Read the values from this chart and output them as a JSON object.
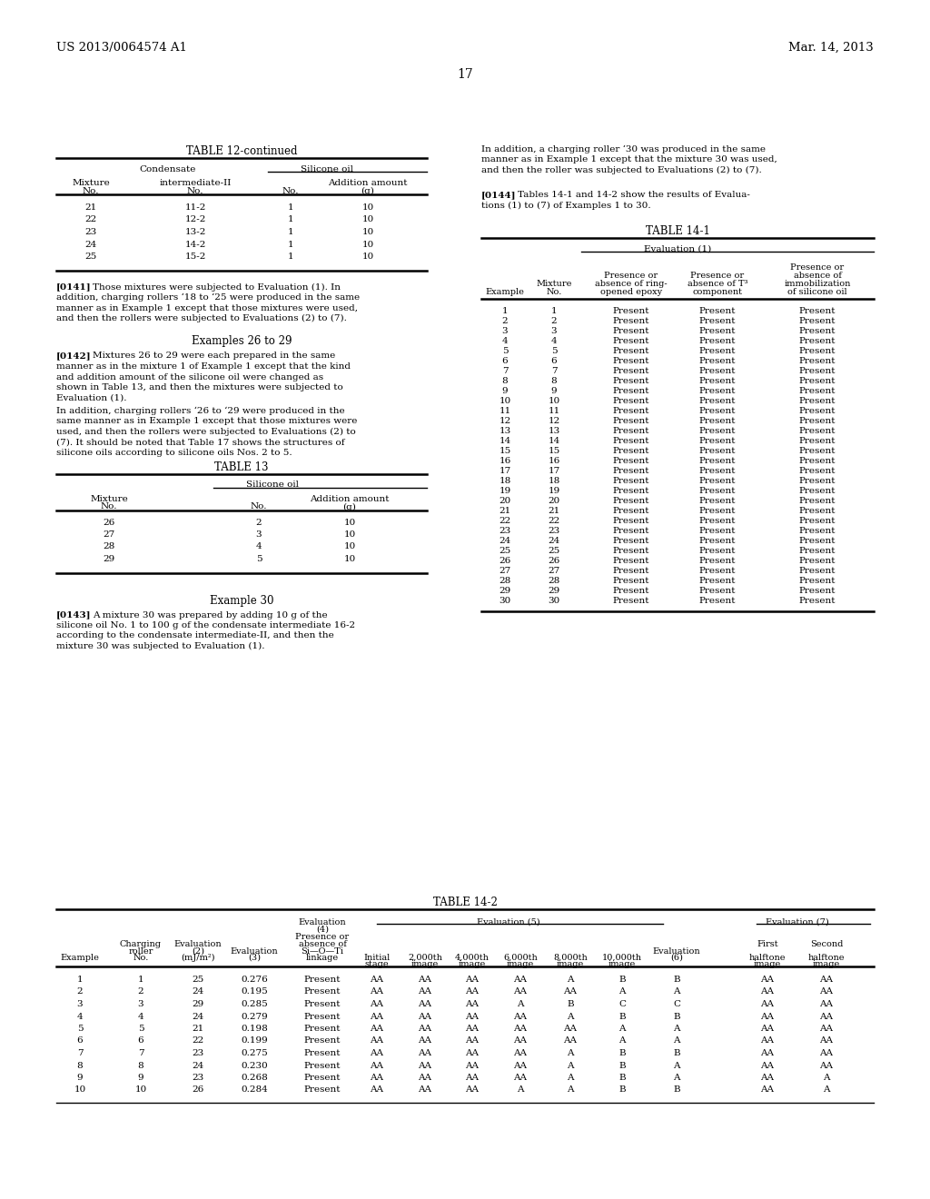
{
  "page_header_left": "US 2013/0064574 A1",
  "page_header_right": "Mar. 14, 2013",
  "page_number": "17",
  "background_color": "#ffffff",
  "text_color": "#000000",
  "table12_title": "TABLE 12-continued",
  "table12_data": [
    [
      "21",
      "11-2",
      "1",
      "10"
    ],
    [
      "22",
      "12-2",
      "1",
      "10"
    ],
    [
      "23",
      "13-2",
      "1",
      "10"
    ],
    [
      "24",
      "14-2",
      "1",
      "10"
    ],
    [
      "25",
      "15-2",
      "1",
      "10"
    ]
  ],
  "examples2629_heading": "Examples 26 to 29",
  "example30_heading": "Example 30",
  "table13_title": "TABLE 13",
  "table13_data": [
    [
      "26",
      "2",
      "10"
    ],
    [
      "27",
      "3",
      "10"
    ],
    [
      "28",
      "4",
      "10"
    ],
    [
      "29",
      "5",
      "10"
    ]
  ],
  "table141_title": "TABLE 14-1",
  "table141_group_header": "Evaluation (1)",
  "table141_data": [
    [
      "1",
      "1",
      "Present",
      "Present",
      "Present"
    ],
    [
      "2",
      "2",
      "Present",
      "Present",
      "Present"
    ],
    [
      "3",
      "3",
      "Present",
      "Present",
      "Present"
    ],
    [
      "4",
      "4",
      "Present",
      "Present",
      "Present"
    ],
    [
      "5",
      "5",
      "Present",
      "Present",
      "Present"
    ],
    [
      "6",
      "6",
      "Present",
      "Present",
      "Present"
    ],
    [
      "7",
      "7",
      "Present",
      "Present",
      "Present"
    ],
    [
      "8",
      "8",
      "Present",
      "Present",
      "Present"
    ],
    [
      "9",
      "9",
      "Present",
      "Present",
      "Present"
    ],
    [
      "10",
      "10",
      "Present",
      "Present",
      "Present"
    ],
    [
      "11",
      "11",
      "Present",
      "Present",
      "Present"
    ],
    [
      "12",
      "12",
      "Present",
      "Present",
      "Present"
    ],
    [
      "13",
      "13",
      "Present",
      "Present",
      "Present"
    ],
    [
      "14",
      "14",
      "Present",
      "Present",
      "Present"
    ],
    [
      "15",
      "15",
      "Present",
      "Present",
      "Present"
    ],
    [
      "16",
      "16",
      "Present",
      "Present",
      "Present"
    ],
    [
      "17",
      "17",
      "Present",
      "Present",
      "Present"
    ],
    [
      "18",
      "18",
      "Present",
      "Present",
      "Present"
    ],
    [
      "19",
      "19",
      "Present",
      "Present",
      "Present"
    ],
    [
      "20",
      "20",
      "Present",
      "Present",
      "Present"
    ],
    [
      "21",
      "21",
      "Present",
      "Present",
      "Present"
    ],
    [
      "22",
      "22",
      "Present",
      "Present",
      "Present"
    ],
    [
      "23",
      "23",
      "Present",
      "Present",
      "Present"
    ],
    [
      "24",
      "24",
      "Present",
      "Present",
      "Present"
    ],
    [
      "25",
      "25",
      "Present",
      "Present",
      "Present"
    ],
    [
      "26",
      "26",
      "Present",
      "Present",
      "Present"
    ],
    [
      "27",
      "27",
      "Present",
      "Present",
      "Present"
    ],
    [
      "28",
      "28",
      "Present",
      "Present",
      "Present"
    ],
    [
      "29",
      "29",
      "Present",
      "Present",
      "Present"
    ],
    [
      "30",
      "30",
      "Present",
      "Present",
      "Present"
    ]
  ],
  "table142_title": "TABLE 14-2",
  "table142_data": [
    [
      "1",
      "1",
      "25",
      "0.276",
      "Present",
      "AA",
      "AA",
      "AA",
      "AA",
      "A",
      "B",
      "B",
      "AA",
      "AA"
    ],
    [
      "2",
      "2",
      "24",
      "0.195",
      "Present",
      "AA",
      "AA",
      "AA",
      "AA",
      "AA",
      "A",
      "A",
      "AA",
      "AA"
    ],
    [
      "3",
      "3",
      "29",
      "0.285",
      "Present",
      "AA",
      "AA",
      "AA",
      "A",
      "B",
      "C",
      "C",
      "AA",
      "AA"
    ],
    [
      "4",
      "4",
      "24",
      "0.279",
      "Present",
      "AA",
      "AA",
      "AA",
      "AA",
      "A",
      "B",
      "B",
      "AA",
      "AA"
    ],
    [
      "5",
      "5",
      "21",
      "0.198",
      "Present",
      "AA",
      "AA",
      "AA",
      "AA",
      "AA",
      "A",
      "A",
      "AA",
      "AA"
    ],
    [
      "6",
      "6",
      "22",
      "0.199",
      "Present",
      "AA",
      "AA",
      "AA",
      "AA",
      "AA",
      "A",
      "A",
      "AA",
      "AA"
    ],
    [
      "7",
      "7",
      "23",
      "0.275",
      "Present",
      "AA",
      "AA",
      "AA",
      "AA",
      "A",
      "B",
      "B",
      "AA",
      "AA"
    ],
    [
      "8",
      "8",
      "24",
      "0.230",
      "Present",
      "AA",
      "AA",
      "AA",
      "AA",
      "A",
      "B",
      "A",
      "AA",
      "AA"
    ],
    [
      "9",
      "9",
      "23",
      "0.268",
      "Present",
      "AA",
      "AA",
      "AA",
      "AA",
      "A",
      "B",
      "A",
      "AA",
      "A"
    ],
    [
      "10",
      "10",
      "26",
      "0.284",
      "Present",
      "AA",
      "AA",
      "AA",
      "A",
      "A",
      "B",
      "B",
      "AA",
      "A"
    ]
  ]
}
